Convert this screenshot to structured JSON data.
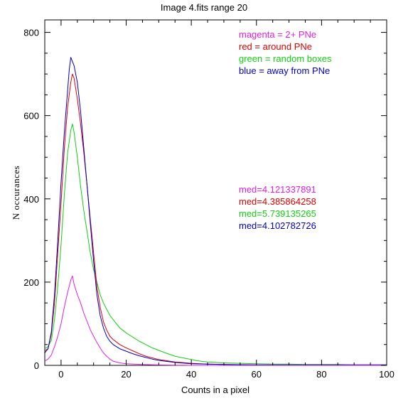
{
  "chart_data": {
    "type": "line",
    "title": "Image 4.fits   range 20",
    "xlabel": "Counts in a pixel",
    "ylabel": "N occurances",
    "xlim": [
      -5,
      100
    ],
    "ylim": [
      0,
      830
    ],
    "xticks": [
      0,
      20,
      40,
      60,
      80,
      100
    ],
    "yticks": [
      0,
      200,
      400,
      600,
      800
    ],
    "grid": false,
    "legend_position": "top-right",
    "legend": [
      {
        "text": "magenta = 2+ PNe",
        "color": "#e020e0"
      },
      {
        "text": "red = around PNe",
        "color": "#e00000"
      },
      {
        "text": "green = random boxes",
        "color": "#10d010"
      },
      {
        "text": "blue = away from PNe",
        "color": "#0000c8"
      }
    ],
    "medians": [
      {
        "text": "med=4.121337891",
        "color": "#e020e0"
      },
      {
        "text": "med=4.385864258",
        "color": "#e00000"
      },
      {
        "text": "med=5.739135265",
        "color": "#10d010"
      },
      {
        "text": "med=4.102782726",
        "color": "#0000c8"
      }
    ],
    "series": [
      {
        "color": "#10d010",
        "x": [
          -5,
          -4,
          -3,
          -2,
          -1,
          0,
          1,
          2,
          3,
          3.5,
          4,
          5,
          6,
          7,
          8,
          9,
          10,
          11,
          12,
          13,
          14,
          15,
          16,
          17,
          18,
          20,
          22,
          24,
          26,
          28,
          30,
          32,
          35,
          38,
          40,
          42,
          45,
          50,
          55,
          60,
          65,
          70,
          75,
          80,
          85,
          90,
          95,
          100
        ],
        "y": [
          40,
          45,
          60,
          110,
          190,
          290,
          410,
          510,
          565,
          580,
          560,
          500,
          430,
          370,
          320,
          270,
          230,
          200,
          170,
          150,
          135,
          120,
          110,
          100,
          90,
          78,
          68,
          58,
          50,
          42,
          36,
          30,
          22,
          17,
          14,
          11,
          8,
          6,
          5,
          4,
          3,
          3,
          2,
          2,
          2,
          1,
          1,
          1
        ]
      },
      {
        "color": "#e00000",
        "x": [
          -5,
          -4,
          -3,
          -2,
          -1,
          0,
          1,
          2,
          3,
          3.5,
          4,
          5,
          6,
          7,
          8,
          9,
          10,
          11,
          12,
          13,
          14,
          15,
          16,
          17,
          18,
          20,
          22,
          24,
          26,
          28,
          30,
          35,
          40,
          45,
          50,
          60,
          70,
          80,
          90,
          100
        ],
        "y": [
          35,
          40,
          75,
          150,
          270,
          390,
          520,
          620,
          680,
          700,
          690,
          640,
          580,
          510,
          430,
          350,
          270,
          190,
          140,
          105,
          85,
          70,
          62,
          56,
          50,
          42,
          35,
          28,
          22,
          18,
          14,
          8,
          5,
          3,
          2,
          1,
          1,
          1,
          1,
          1
        ]
      },
      {
        "color": "#0000c8",
        "x": [
          -5,
          -4,
          -3,
          -2,
          -1,
          0,
          1,
          2,
          2.5,
          3,
          3.5,
          4,
          5,
          6,
          7,
          8,
          9,
          10,
          11,
          12,
          13,
          14,
          15,
          16,
          17,
          18,
          20,
          22,
          24,
          26,
          28,
          30,
          35,
          40,
          45,
          50,
          60,
          70,
          80,
          90,
          100
        ],
        "y": [
          30,
          40,
          80,
          170,
          300,
          440,
          560,
          660,
          710,
          740,
          730,
          720,
          680,
          610,
          520,
          430,
          340,
          250,
          170,
          120,
          90,
          70,
          58,
          50,
          45,
          40,
          34,
          28,
          23,
          19,
          15,
          12,
          7,
          4,
          3,
          2,
          1,
          1,
          1,
          1,
          1
        ]
      },
      {
        "color": "#e020e0",
        "x": [
          -5,
          -4,
          -3,
          -2,
          -1,
          0,
          1,
          2,
          3,
          3.5,
          4,
          5,
          6,
          7,
          8,
          9,
          10,
          11,
          12,
          13,
          14,
          15,
          16,
          18,
          20,
          25,
          30,
          40,
          50,
          60,
          80,
          100
        ],
        "y": [
          10,
          15,
          25,
          45,
          70,
          100,
          140,
          175,
          205,
          215,
          195,
          170,
          150,
          125,
          105,
          85,
          70,
          55,
          42,
          30,
          22,
          15,
          10,
          6,
          4,
          2,
          1,
          0,
          0,
          0,
          0,
          0
        ]
      }
    ]
  }
}
